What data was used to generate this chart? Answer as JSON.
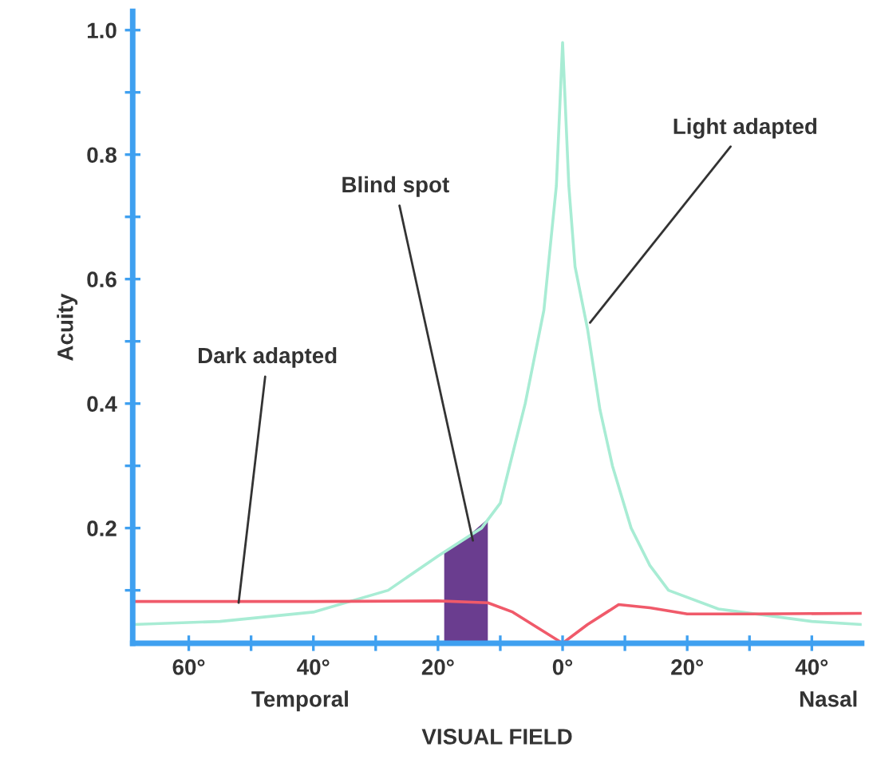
{
  "chart_data": {
    "type": "line",
    "xlabel": "VISUAL FIELD",
    "ylabel": "Acuity",
    "xlim": [
      -69,
      48
    ],
    "ylim": [
      0.015,
      1.03
    ],
    "xticks": [
      {
        "value": -60,
        "label": "60°"
      },
      {
        "value": -50,
        "label": null
      },
      {
        "value": -40,
        "label": "40°"
      },
      {
        "value": -30,
        "label": null
      },
      {
        "value": -20,
        "label": "20°"
      },
      {
        "value": -10,
        "label": null
      },
      {
        "value": 0,
        "label": "0°"
      },
      {
        "value": 10,
        "label": null
      },
      {
        "value": 20,
        "label": "20°"
      },
      {
        "value": 30,
        "label": null
      },
      {
        "value": 40,
        "label": "40°"
      }
    ],
    "yticks": [
      {
        "value": 0.1,
        "label": null
      },
      0.2,
      {
        "value": 0.3,
        "label": null
      },
      0.4,
      {
        "value": 0.5,
        "label": null
      },
      0.6,
      {
        "value": 0.7,
        "label": null
      },
      0.8,
      {
        "value": 0.9,
        "label": null
      },
      {
        "value": 1.0,
        "label": "1.0"
      }
    ],
    "grid": false,
    "legend": false,
    "marker": "none",
    "line_style": "solid",
    "series": [
      {
        "type": "area",
        "color": "#6a3d8f",
        "x": [
          -19,
          -16,
          -12
        ],
        "values": [
          0.16,
          0.18,
          0.215
        ]
      },
      {
        "color": "#a8ecd4",
        "x": [
          -69,
          -55,
          -40,
          -28,
          -20,
          -13,
          -10,
          -6,
          -3,
          -1,
          0,
          1,
          2,
          4,
          6,
          8,
          11,
          14,
          17,
          25,
          40,
          48
        ],
        "values": [
          0.045,
          0.05,
          0.065,
          0.1,
          0.155,
          0.2,
          0.24,
          0.4,
          0.55,
          0.75,
          0.98,
          0.75,
          0.62,
          0.52,
          0.39,
          0.3,
          0.2,
          0.14,
          0.1,
          0.07,
          0.05,
          0.045
        ]
      },
      {
        "color": "#f05a6a",
        "x": [
          -69,
          -40,
          -20,
          -12,
          -8,
          -4,
          0,
          4,
          9,
          14,
          20,
          30,
          48
        ],
        "values": [
          0.082,
          0.082,
          0.083,
          0.08,
          0.065,
          0.04,
          0.015,
          0.045,
          0.077,
          0.072,
          0.062,
          0.062,
          0.063
        ]
      }
    ],
    "annotations": [
      {
        "text": "Dark adapted",
        "x": -52,
        "y": 0.08
      },
      {
        "text": "Blind spot",
        "x": -14.4,
        "y": 0.18
      },
      {
        "text": "Light adapted",
        "x": 4.4,
        "y": 0.53
      },
      "Temporal",
      "Nasal"
    ]
  }
}
